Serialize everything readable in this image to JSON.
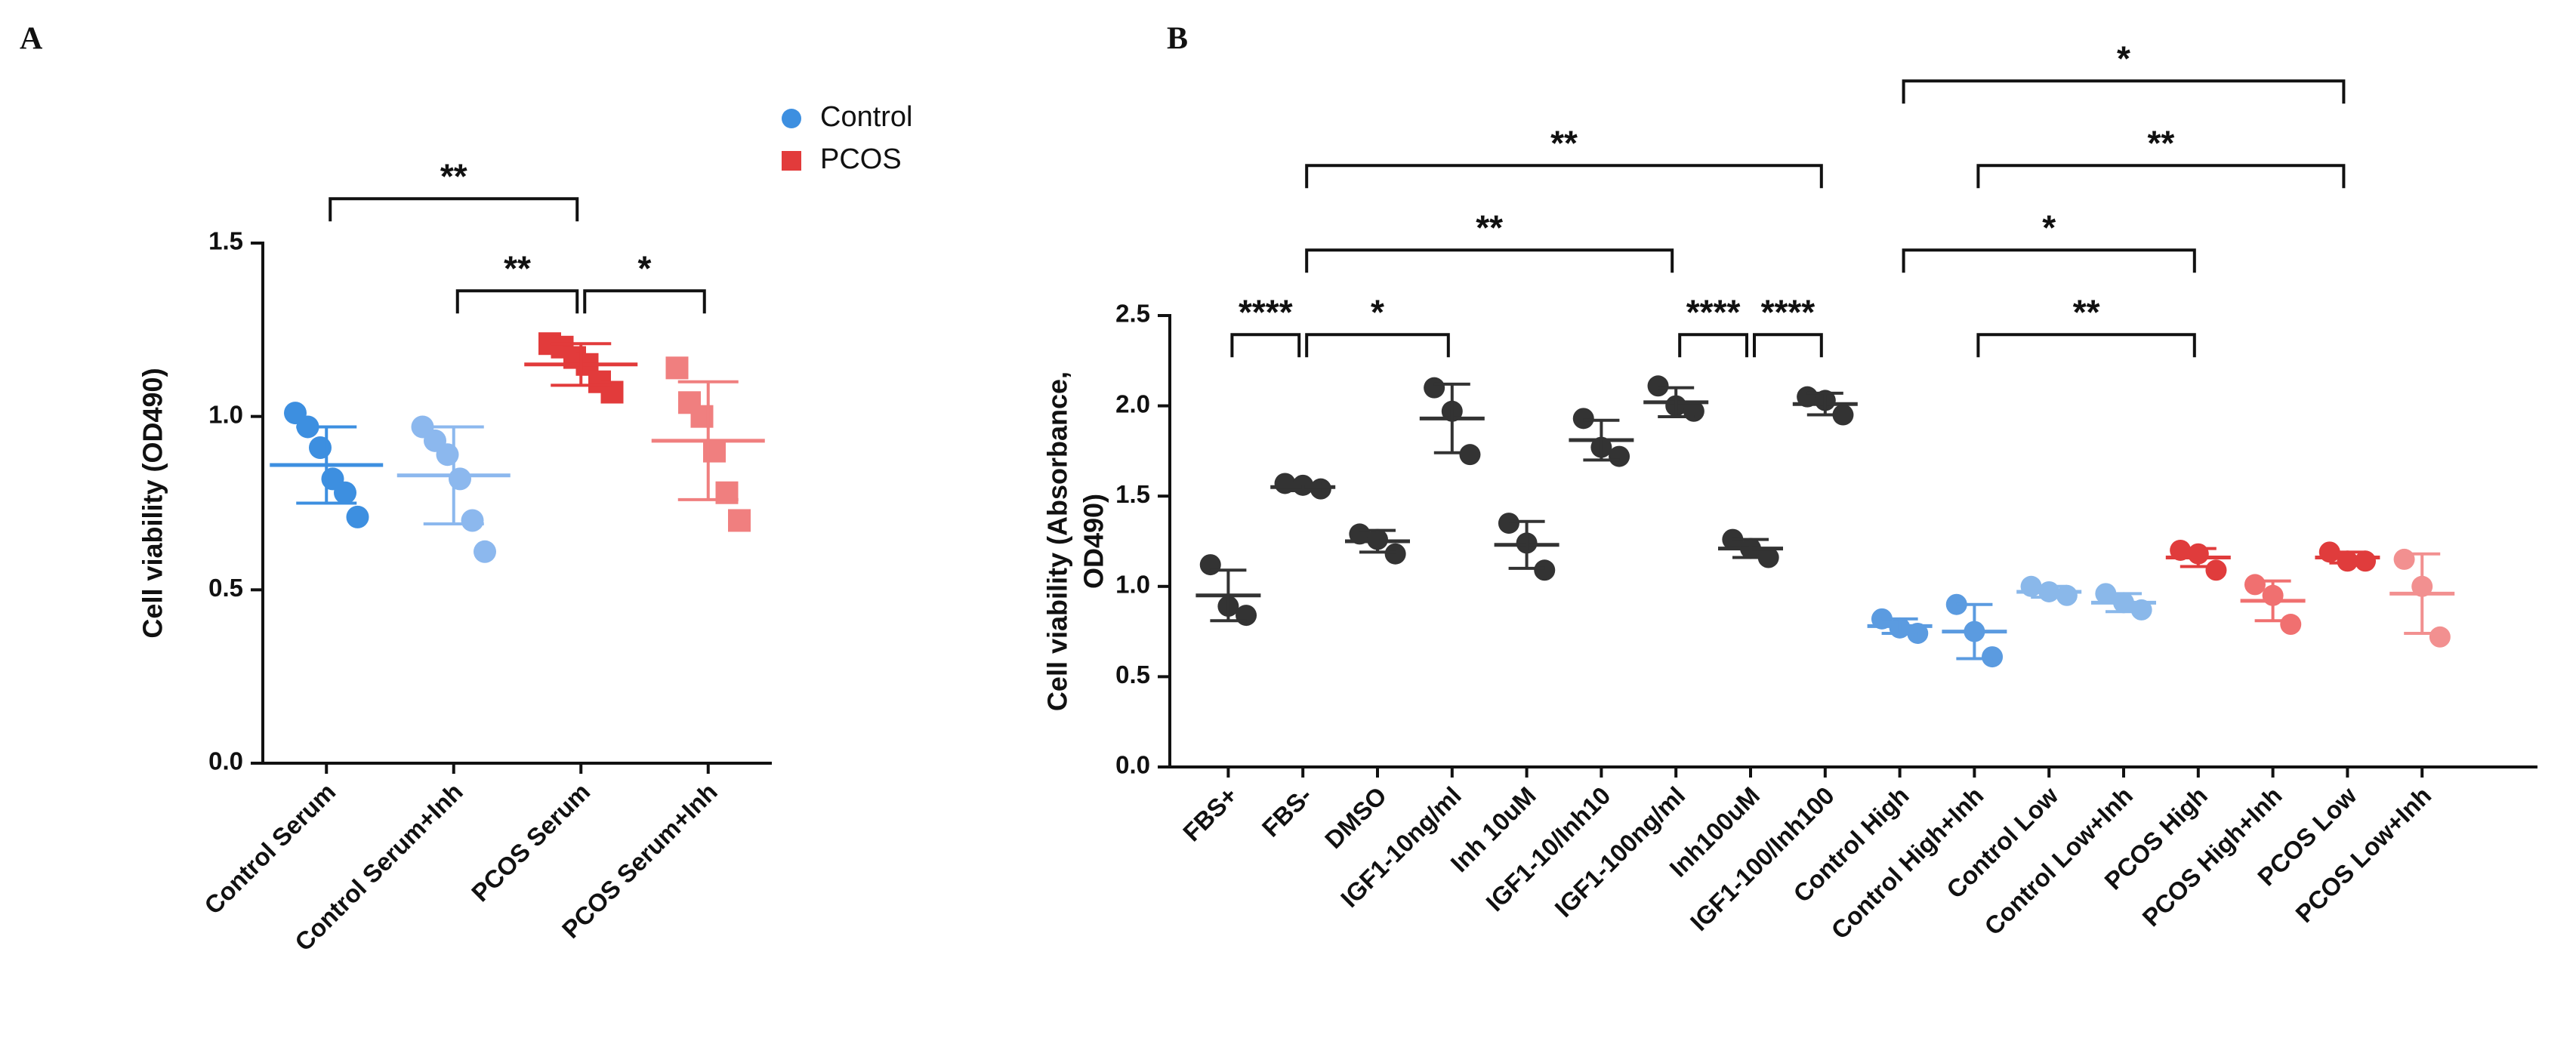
{
  "chart_data": [
    {
      "type": "dotplot",
      "label": "A",
      "ylabel": [
        "Cell viability (OD490)"
      ],
      "categories": [
        "Control Serum",
        "Control Serum+Inh",
        "PCOS Serum",
        "PCOS Serum+Inh"
      ],
      "points": [
        [
          1.01,
          0.97,
          0.91,
          0.82,
          0.78,
          0.71
        ],
        [
          0.97,
          0.93,
          0.89,
          0.82,
          0.7,
          0.61
        ],
        [
          1.21,
          1.2,
          1.17,
          1.15,
          1.1,
          1.07
        ],
        [
          1.14,
          1.04,
          1.0,
          0.9,
          0.78,
          0.7
        ]
      ],
      "means": [
        0.86,
        0.83,
        1.15,
        0.93
      ],
      "sds": [
        0.11,
        0.14,
        0.06,
        0.17
      ],
      "colors": [
        "#3d8fe0",
        "#8cb8ee",
        "#e23b3b",
        "#f07f7f"
      ],
      "markers": [
        "circle",
        "circle",
        "square",
        "square"
      ],
      "ylim": [
        0,
        1.5
      ],
      "yticks": [
        {
          "value": 0,
          "label": "0.0"
        },
        0.5,
        {
          "value": 1,
          "label": "1.0"
        },
        1.5
      ],
      "legend": [
        {
          "name": "Control",
          "color": "#3d8fe0",
          "marker": "circle"
        },
        {
          "name": "PCOS",
          "color": "#e23b3b",
          "marker": "square"
        }
      ],
      "legend_position": "right",
      "significance": [
        {
          "from": 1,
          "to": 2,
          "label": "**"
        },
        {
          "from": 2,
          "to": 3,
          "label": "*"
        },
        {
          "from": 0,
          "to": 2,
          "label": "**"
        }
      ]
    },
    {
      "type": "dotplot",
      "label": "B",
      "ylabel": [
        "Cell viability (Absorbance,",
        "OD490)"
      ],
      "categories": [
        "FBS+",
        "FBS-",
        "DMSO",
        "IGF1-10ng/ml",
        "Inh 10uM",
        "IGF1-10/Inh10",
        "IGF1-100ng/ml",
        "Inh100uM",
        "IGF1-100/Inh100",
        "Control High",
        "Control High+Inh",
        "Control Low",
        "Control Low+Inh",
        "PCOS High",
        "PCOS High+Inh",
        "PCOS Low",
        "PCOS Low+Inh"
      ],
      "points": [
        [
          1.12,
          0.89,
          0.84
        ],
        [
          1.57,
          1.56,
          1.54
        ],
        [
          1.29,
          1.26,
          1.18
        ],
        [
          2.1,
          1.97,
          1.73
        ],
        [
          1.35,
          1.24,
          1.09
        ],
        [
          1.93,
          1.77,
          1.72
        ],
        [
          2.11,
          2.0,
          1.97
        ],
        [
          1.26,
          1.21,
          1.16
        ],
        [
          2.05,
          2.03,
          1.95
        ],
        [
          0.82,
          0.77,
          0.74
        ],
        [
          0.9,
          0.75,
          0.61
        ],
        [
          1.0,
          0.97,
          0.95
        ],
        [
          0.96,
          0.91,
          0.87
        ],
        [
          1.2,
          1.18,
          1.09
        ],
        [
          1.01,
          0.95,
          0.79
        ],
        [
          1.19,
          1.14,
          1.14
        ],
        [
          1.15,
          1.0,
          0.72
        ]
      ],
      "means": [
        0.95,
        1.55,
        1.25,
        1.93,
        1.23,
        1.81,
        2.02,
        1.21,
        2.01,
        0.78,
        0.75,
        0.97,
        0.91,
        1.16,
        0.92,
        1.16,
        0.96
      ],
      "sds": [
        0.14,
        0.02,
        0.06,
        0.19,
        0.13,
        0.11,
        0.08,
        0.05,
        0.06,
        0.04,
        0.15,
        0.03,
        0.05,
        0.05,
        0.11,
        0.03,
        0.22
      ],
      "colors": [
        "#333333",
        "#333333",
        "#333333",
        "#333333",
        "#333333",
        "#333333",
        "#333333",
        "#333333",
        "#333333",
        "#5b9be0",
        "#5b9be0",
        "#8ab8ea",
        "#8ab8ea",
        "#e03c3c",
        "#f07070",
        "#e03c3c",
        "#f29090"
      ],
      "ylim": [
        0,
        2.5
      ],
      "yticks": [
        {
          "value": 0,
          "label": "0.0"
        },
        0.5,
        {
          "value": 1,
          "label": "1.0"
        },
        1.5,
        {
          "value": 2,
          "label": "2.0"
        },
        2.5
      ],
      "significance": [
        {
          "from": 0,
          "to": 1,
          "label": "****"
        },
        {
          "from": 1,
          "to": 3,
          "label": "*"
        },
        {
          "from": 6,
          "to": 7,
          "label": "****"
        },
        {
          "from": 7,
          "to": 8,
          "label": "****"
        },
        {
          "from": 1,
          "to": 6,
          "label": "**"
        },
        {
          "from": 1,
          "to": 8,
          "label": "**"
        },
        {
          "from": 10,
          "to": 13,
          "label": "**"
        },
        {
          "from": 9,
          "to": 13,
          "label": "*"
        },
        {
          "from": 10,
          "to": 15,
          "label": "**"
        },
        {
          "from": 9,
          "to": 15,
          "label": "*"
        }
      ]
    }
  ]
}
